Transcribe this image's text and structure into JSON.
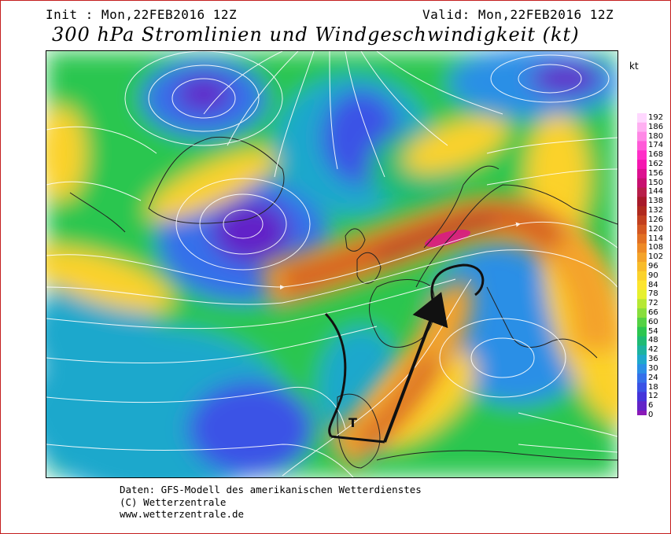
{
  "header": {
    "init": "Init : Mon,22FEB2016 12Z",
    "valid": "Valid: Mon,22FEB2016 12Z",
    "title": "300 hPa Stromlinien und Windgeschwindigkeit (kt)"
  },
  "legend": {
    "unit": "kt",
    "values": [
      192,
      186,
      180,
      174,
      168,
      162,
      156,
      150,
      144,
      138,
      132,
      126,
      120,
      114,
      108,
      102,
      96,
      90,
      84,
      78,
      72,
      66,
      60,
      54,
      48,
      42,
      36,
      30,
      24,
      18,
      12,
      6,
      0
    ],
    "colors": [
      "#ffd8ff",
      "#ffb0f2",
      "#ff88e6",
      "#ff5ad8",
      "#ff2ec8",
      "#f516b0",
      "#dd1090",
      "#c81070",
      "#b81f4a",
      "#a81a2a",
      "#b02a1e",
      "#c2401f",
      "#d45822",
      "#e27024",
      "#ee8a26",
      "#f4a329",
      "#f8bc2a",
      "#fbd22c",
      "#fde52e",
      "#e6f02e",
      "#b6e834",
      "#88de3c",
      "#54d244",
      "#2cc650",
      "#1ebb74",
      "#1cb3a0",
      "#1ea8cc",
      "#2a8fe6",
      "#3470ea",
      "#3a52e6",
      "#4434da",
      "#6224c8",
      "#8a1ab8"
    ]
  },
  "footer": {
    "line1": "Daten: GFS-Modell des amerikanischen Wetterdienstes",
    "line2": "(C) Wetterzentrale",
    "line3": "www.wetterzentrale.de"
  },
  "annotation": {
    "trough_label": "T"
  }
}
